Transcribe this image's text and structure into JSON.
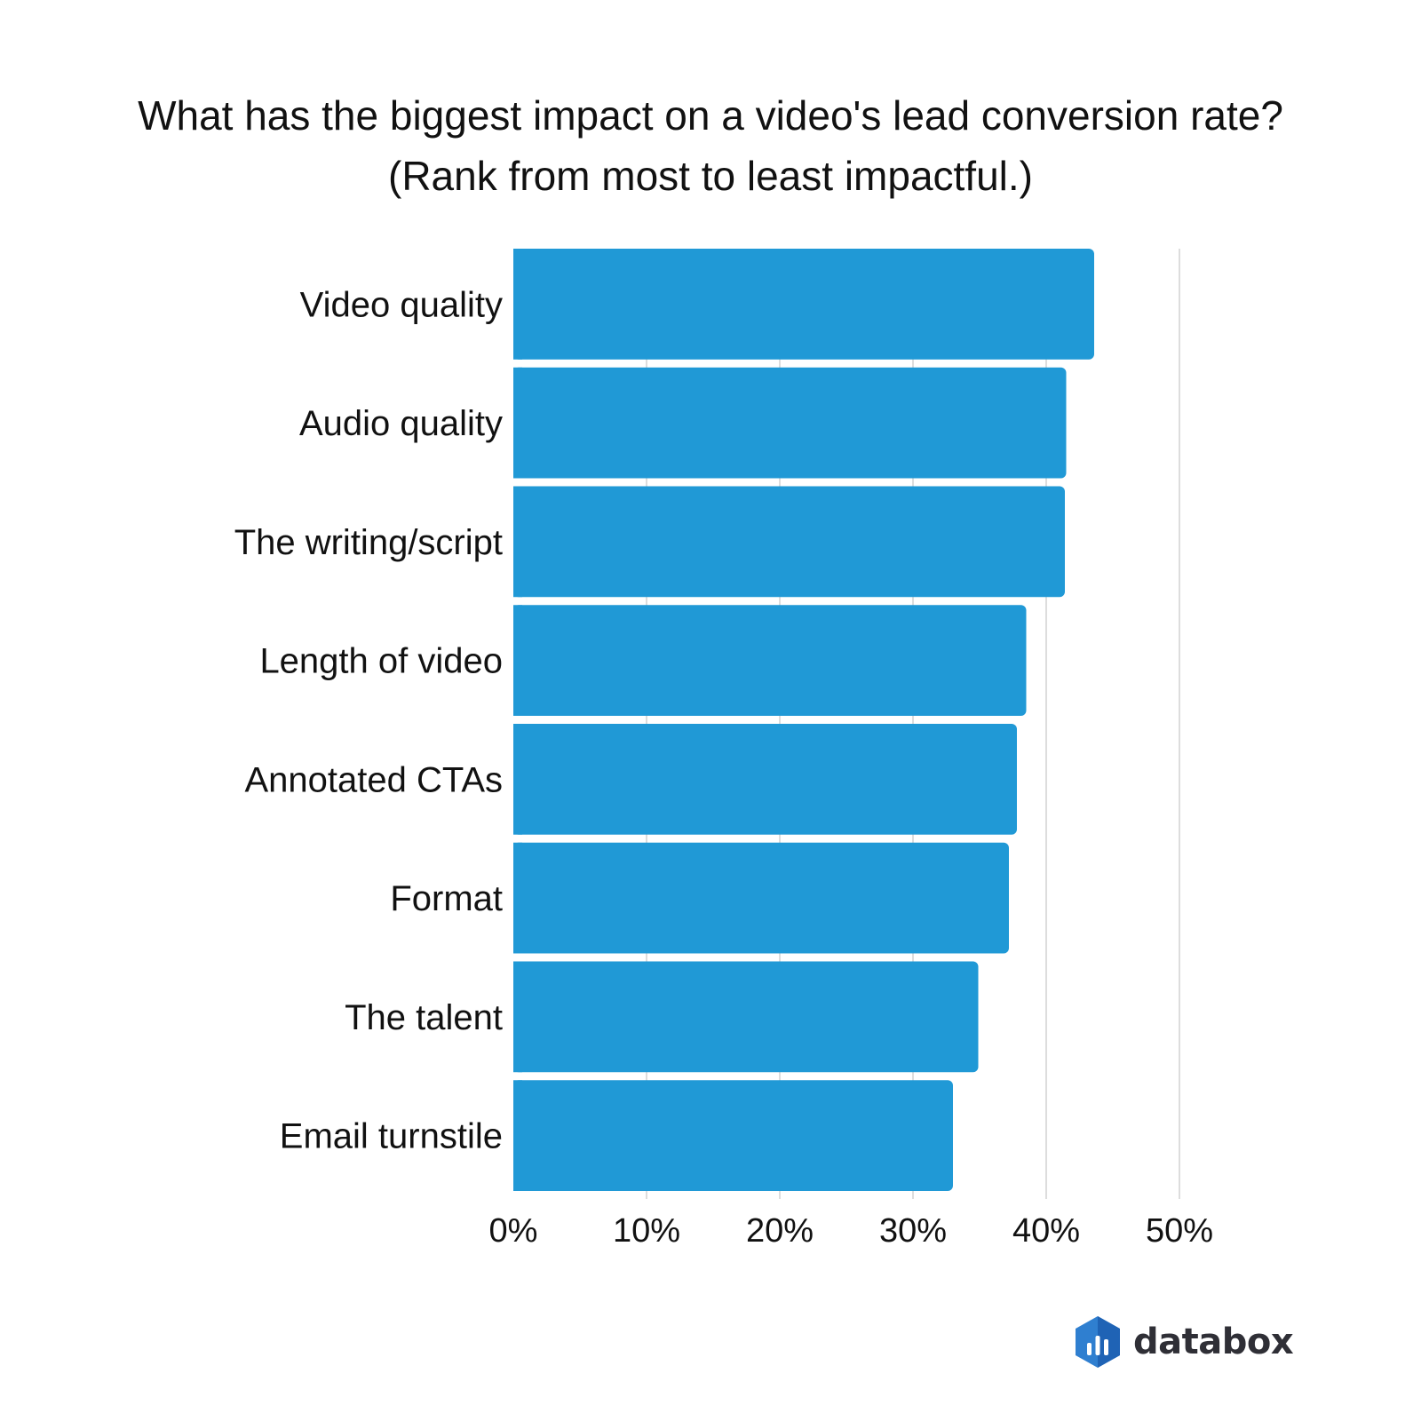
{
  "chart_data": {
    "type": "bar",
    "orientation": "horizontal",
    "title": "What has the biggest impact on a video's lead conversion rate?",
    "subtitle": "(Rank from most to least impactful.)",
    "categories": [
      "Video quality",
      "Audio quality",
      "The writing/script",
      "Length of video",
      "Annotated CTAs",
      "Format",
      "The talent",
      "Email turnstile"
    ],
    "values": [
      43.6,
      41.5,
      41.4,
      38.5,
      37.8,
      37.2,
      34.9,
      33.0
    ],
    "xlim": [
      0,
      50
    ],
    "xticks": [
      "0%",
      "10%",
      "20%",
      "30%",
      "40%",
      "50%"
    ],
    "grid": "vertical",
    "bar_color": "#2099d6"
  },
  "brand": {
    "name": "databox",
    "icon": "databox-logo-icon",
    "color": "#2f7fd0"
  }
}
